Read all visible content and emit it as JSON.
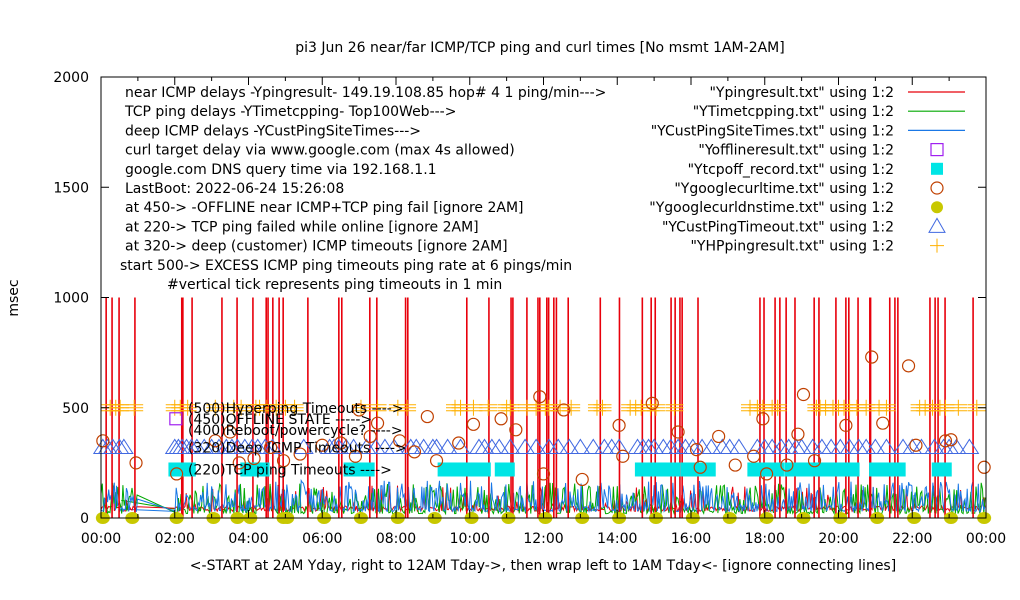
{
  "chart_data": {
    "type": "scatter",
    "title": "pi3 Jun 26  near/far ICMP/TCP ping and curl times [No msmt  1AM-2AM]",
    "xlabel": "<-START at 2AM Yday, right to 12AM Tday->, then wrap left to 1AM Tday<- [ignore connecting lines]",
    "ylabel": "msec",
    "xlim": [
      0,
      24
    ],
    "ylim": [
      0,
      2000
    ],
    "grid": false,
    "x_ticks": [
      "00:00",
      "02:00",
      "04:00",
      "06:00",
      "08:00",
      "10:00",
      "12:00",
      "14:00",
      "16:00",
      "18:00",
      "20:00",
      "22:00",
      "00:00"
    ],
    "y_ticks": [
      "0",
      "500",
      "1000",
      "1500",
      "2000"
    ],
    "y_tick_values": [
      0,
      500,
      1000,
      1500,
      2000
    ],
    "info_lines": [
      "near ICMP delays -Ypingresult- 149.19.108.85 hop# 4 1 ping/min--->",
      "TCP ping delays -YTimetcpping- Top100Web--->",
      "deep ICMP delays -YCustPingSiteTimes--->",
      "curl target delay via www.google.com (max 4s allowed)",
      "google.com DNS query time via 192.168.1.1",
      "LastBoot: 2022-06-24 15:26:08",
      "at 450-> -OFFLINE near ICMP+TCP ping fail [ignore 2AM]",
      "at 220-> TCP ping failed while online [ignore 2AM]",
      "at 320-> deep (customer) ICMP timeouts [ignore 2AM]",
      "start 500-> EXCESS ICMP ping timeouts ping rate at 6 pings/min",
      "#vertical tick represents ping timeouts in 1 min"
    ],
    "annotations": [
      {
        "text": "(500)Hyperping Timeouts ---->",
        "y": 500
      },
      {
        "text": "(450)OFFLINE STATE ----->",
        "y": 450
      },
      {
        "text": "(400)Reboot/powercycle? ---->",
        "y": 400
      },
      {
        "text": "(320)Deep ICMP Timeouts ---->",
        "y": 320
      },
      {
        "text": "(220)TCP ping Timeouts ---->",
        "y": 220
      }
    ],
    "legend_position": "top-right",
    "legend": [
      {
        "label": "\"Ypingresult.txt\" using 1:2",
        "style": "line",
        "color": "#e8000b"
      },
      {
        "label": "\"YTimetcpping.txt\" using 1:2",
        "style": "line",
        "color": "#00a800"
      },
      {
        "label": "\"YCustPingSiteTimes.txt\" using 1:2",
        "style": "line",
        "color": "#1a78e6"
      },
      {
        "label": "\"Yofflineresult.txt\" using 1:2",
        "style": "open-square",
        "color": "#a020f0"
      },
      {
        "label": "\"Ytcpoff_record.txt\" using 1:2",
        "style": "filled-square",
        "color": "#00e5e5"
      },
      {
        "label": "\"Ygooglecurltime.txt\" using 1:2",
        "style": "open-circle",
        "color": "#c04000"
      },
      {
        "label": "\"Ygooglecurldnstime.txt\" using 1:2",
        "style": "filled-circle",
        "color": "#c8c800"
      },
      {
        "label": "\"YCustPingTimeout.txt\" using 1:2",
        "style": "open-triangle",
        "color": "#4169e1"
      },
      {
        "label": "\"YHPpingresult.txt\" using 1:2",
        "style": "plus",
        "color": "#ffb000"
      }
    ],
    "series": [
      {
        "name": "Ypingresult.txt",
        "kind": "timeout_spikes_to_1000",
        "x": [
          0.14,
          0.3,
          0.49,
          0.92,
          2.19,
          2.22,
          2.47,
          3.28,
          3.69,
          4.12,
          4.48,
          4.53,
          4.66,
          4.83,
          4.94,
          5.61,
          6.45,
          6.53,
          7.29,
          7.48,
          8.26,
          8.32,
          9.92,
          10.52,
          11.12,
          11.17,
          11.55,
          11.85,
          11.9,
          12.09,
          12.14,
          12.28,
          12.35,
          12.67,
          13.54,
          14.06,
          14.68,
          14.92,
          15.03,
          15.46,
          15.57,
          15.7,
          15.76,
          16.19,
          17.87,
          17.98,
          18.28,
          18.41,
          18.58,
          18.82,
          19.34,
          19.47,
          19.93,
          20.2,
          20.28,
          20.53,
          20.85,
          20.87,
          21.39,
          21.53,
          21.61,
          22.48,
          22.62,
          22.7,
          22.89,
          23.65
        ],
        "baseline_ms": 30
      },
      {
        "name": "YTimetcpping.txt",
        "kind": "noise",
        "range_ms": [
          10,
          150
        ]
      },
      {
        "name": "YCustPingSiteTimes.txt",
        "kind": "noise",
        "range_ms": [
          20,
          180
        ]
      },
      {
        "name": "Yofflineresult.txt",
        "x": [
          2.03
        ],
        "y": [
          450
        ]
      },
      {
        "name": "Ytcpoff_record.txt",
        "y_const": 220,
        "x": [
          2.1,
          2.3,
          4.05,
          4.3,
          6.85,
          7.15,
          9.4,
          9.65,
          9.95,
          10.3,
          10.95,
          14.75,
          15.1,
          15.45,
          16.0,
          16.4,
          17.8,
          18.25,
          18.8,
          19.2,
          19.65,
          20.05,
          20.3,
          21.1,
          21.3,
          21.55,
          22.8
        ]
      },
      {
        "name": "Ygooglecurltime.txt",
        "points": [
          [
            0.05,
            350
          ],
          [
            0.95,
            250
          ],
          [
            2.05,
            200
          ],
          [
            3.1,
            350
          ],
          [
            3.5,
            390
          ],
          [
            3.75,
            250
          ],
          [
            4.15,
            270
          ],
          [
            4.6,
            320
          ],
          [
            4.95,
            260
          ],
          [
            5.4,
            290
          ],
          [
            6.0,
            330
          ],
          [
            6.5,
            340
          ],
          [
            6.9,
            280
          ],
          [
            7.0,
            490
          ],
          [
            7.3,
            370
          ],
          [
            7.5,
            430
          ],
          [
            8.1,
            350
          ],
          [
            8.5,
            300
          ],
          [
            8.85,
            460
          ],
          [
            9.1,
            260
          ],
          [
            9.7,
            340
          ],
          [
            10.1,
            425
          ],
          [
            10.85,
            450
          ],
          [
            11.25,
            400
          ],
          [
            11.9,
            550
          ],
          [
            12.0,
            200
          ],
          [
            12.55,
            490
          ],
          [
            13.05,
            175
          ],
          [
            14.05,
            420
          ],
          [
            14.15,
            280
          ],
          [
            14.95,
            520
          ],
          [
            15.65,
            390
          ],
          [
            16.25,
            230
          ],
          [
            16.15,
            310
          ],
          [
            16.75,
            370
          ],
          [
            17.2,
            240
          ],
          [
            17.7,
            280
          ],
          [
            17.95,
            450
          ],
          [
            18.05,
            200
          ],
          [
            18.6,
            240
          ],
          [
            18.9,
            380
          ],
          [
            19.05,
            560
          ],
          [
            19.35,
            260
          ],
          [
            20.2,
            420
          ],
          [
            20.9,
            730
          ],
          [
            21.2,
            430
          ],
          [
            21.9,
            690
          ],
          [
            22.1,
            330
          ],
          [
            22.9,
            350
          ],
          [
            23.05,
            355
          ],
          [
            23.95,
            230
          ]
        ]
      },
      {
        "name": "Ygooglecurldnstime.txt",
        "y_const": 0,
        "x": [
          0.05,
          0.85,
          2.05,
          3.05,
          3.7,
          4.05,
          4.95,
          5.05,
          6.05,
          7.05,
          8.05,
          9.05,
          10.05,
          11.05,
          12.05,
          13.05,
          14.05,
          15.05,
          16.05,
          17.05,
          18.05,
          19.05,
          20.05,
          21.05,
          22.05,
          23.05,
          23.95
        ]
      },
      {
        "name": "YCustPingTimeout.txt",
        "y_const": 320,
        "x": [
          0.05,
          0.18,
          0.32,
          0.5,
          0.62,
          2.0,
          2.1,
          2.2,
          2.32,
          2.45,
          2.6,
          2.8,
          3.0,
          3.2,
          3.4,
          3.55,
          3.7,
          3.9,
          4.1,
          4.25,
          4.45,
          4.65,
          5.5,
          6.2,
          6.32,
          6.45,
          6.65,
          6.85,
          7.2,
          7.45,
          7.7,
          7.95,
          8.4,
          8.55,
          8.75,
          9.0,
          9.1,
          9.4,
          9.75,
          10.25,
          10.4,
          10.6,
          10.8,
          11.1,
          11.5,
          11.8,
          12.15,
          12.4,
          12.7,
          13.0,
          13.35,
          13.65,
          13.85,
          14.05,
          14.55,
          14.7,
          14.85,
          15.0,
          15.25,
          15.45,
          15.65,
          15.85,
          16.05,
          16.3,
          16.55,
          16.85,
          17.05,
          17.3,
          17.8,
          18.0,
          18.2,
          18.45,
          18.65,
          18.85,
          19.0,
          19.3,
          19.55,
          19.8,
          20.05,
          20.3,
          20.55,
          20.75,
          21.0,
          21.3,
          21.75,
          22.0,
          22.25,
          22.6,
          22.85,
          23.0,
          23.2,
          23.55
        ]
      },
      {
        "name": "YHPpingresult.txt",
        "y_const": 500,
        "x": [
          0.25,
          0.4,
          0.52,
          0.9,
          2.0,
          2.15,
          2.35,
          3.1,
          3.6,
          3.8,
          4.2,
          4.3,
          4.5,
          4.75,
          5.0,
          5.25,
          7.05,
          7.5,
          8.05,
          8.3,
          9.6,
          9.75,
          10.1,
          10.5,
          11.0,
          11.1,
          11.55,
          11.8,
          12.05,
          12.15,
          12.45,
          12.75,
          13.45,
          13.6,
          14.35,
          14.5,
          14.65,
          14.9,
          15.05,
          15.55,
          17.6,
          17.8,
          17.95,
          18.2,
          18.35,
          19.4,
          19.5,
          19.65,
          19.85,
          20.0,
          20.15,
          20.3,
          20.5,
          20.75,
          21.1,
          21.3,
          22.2,
          22.35,
          22.55,
          22.75,
          22.9,
          23.25,
          23.75
        ]
      }
    ]
  }
}
